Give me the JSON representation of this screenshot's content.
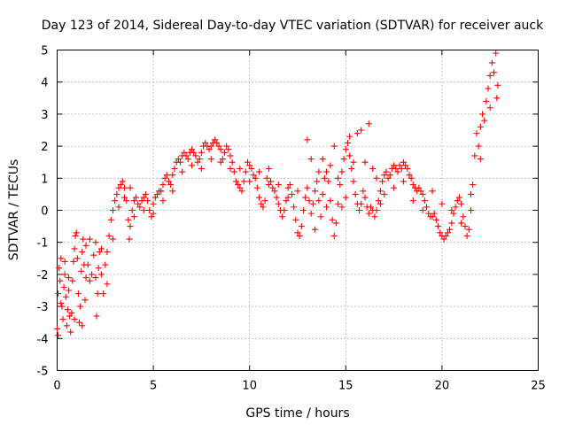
{
  "chart_data": {
    "type": "scatter",
    "title": "Day 123 of 2014, Sidereal Day-to-day VTEC variation (SDTVAR) for receiver auck",
    "xlabel": "GPS time / hours",
    "ylabel": "SDTVAR / TECUs",
    "xlim": [
      0,
      25
    ],
    "ylim": [
      -5,
      5
    ],
    "xticks": [
      0,
      5,
      10,
      15,
      20,
      25
    ],
    "yticks": [
      -5,
      -4,
      -3,
      -2,
      -1,
      0,
      1,
      2,
      3,
      4,
      5
    ],
    "grid": true,
    "legend": "none",
    "series": [
      {
        "name": "SDTVAR",
        "color": "#ff0000",
        "marker": "plus",
        "points": [
          [
            0.0,
            -3.7
          ],
          [
            0.05,
            -2.6
          ],
          [
            0.1,
            -1.8
          ],
          [
            0.15,
            -2.2
          ],
          [
            0.2,
            -1.5
          ],
          [
            0.25,
            -3.0
          ],
          [
            0.3,
            -3.4
          ],
          [
            0.35,
            -2.4
          ],
          [
            0.4,
            -2.0
          ],
          [
            0.45,
            -2.7
          ],
          [
            0.5,
            -3.6
          ],
          [
            0.55,
            -3.1
          ],
          [
            0.6,
            -2.5
          ],
          [
            0.65,
            -3.3
          ],
          [
            0.7,
            -3.8
          ],
          [
            0.75,
            -3.2
          ],
          [
            0.8,
            -2.2
          ],
          [
            0.85,
            -1.6
          ],
          [
            0.9,
            -1.2
          ],
          [
            0.95,
            -0.8
          ],
          [
            1.0,
            -0.7
          ],
          [
            1.05,
            -1.5
          ],
          [
            1.1,
            -2.6
          ],
          [
            1.15,
            -3.5
          ],
          [
            1.2,
            -3.0
          ],
          [
            1.25,
            -1.9
          ],
          [
            1.3,
            -1.3
          ],
          [
            1.35,
            -0.9
          ],
          [
            1.4,
            -1.7
          ],
          [
            1.45,
            -2.8
          ],
          [
            1.5,
            -2.1
          ],
          [
            1.6,
            -1.7
          ],
          [
            1.7,
            -2.2
          ],
          [
            1.8,
            -2.0
          ],
          [
            1.9,
            -1.4
          ],
          [
            2.0,
            -2.1
          ],
          [
            2.05,
            -3.3
          ],
          [
            2.1,
            -2.6
          ],
          [
            2.15,
            -1.8
          ],
          [
            2.2,
            -1.3
          ],
          [
            2.3,
            -2.0
          ],
          [
            2.4,
            -2.6
          ],
          [
            2.5,
            -1.7
          ],
          [
            2.6,
            -1.3
          ],
          [
            2.7,
            -0.8
          ],
          [
            2.8,
            -0.3
          ],
          [
            2.9,
            0.0
          ],
          [
            3.0,
            0.3
          ],
          [
            3.1,
            0.5
          ],
          [
            3.2,
            0.7
          ],
          [
            3.3,
            0.8
          ],
          [
            3.4,
            0.9
          ],
          [
            3.5,
            0.7
          ],
          [
            3.6,
            0.3
          ],
          [
            3.7,
            -0.3
          ],
          [
            3.75,
            -0.9
          ],
          [
            3.8,
            -0.5
          ],
          [
            3.9,
            0.0
          ],
          [
            4.0,
            0.3
          ],
          [
            4.1,
            0.4
          ],
          [
            4.2,
            0.2
          ],
          [
            4.3,
            0.1
          ],
          [
            4.4,
            0.3
          ],
          [
            4.5,
            0.4
          ],
          [
            4.6,
            0.5
          ],
          [
            4.7,
            0.3
          ],
          [
            4.8,
            0.0
          ],
          [
            4.9,
            -0.2
          ],
          [
            5.0,
            0.2
          ],
          [
            5.1,
            0.4
          ],
          [
            5.2,
            0.5
          ],
          [
            5.3,
            0.6
          ],
          [
            5.4,
            0.6
          ],
          [
            5.5,
            0.8
          ],
          [
            5.6,
            1.0
          ],
          [
            5.7,
            1.1
          ],
          [
            5.8,
            0.9
          ],
          [
            5.9,
            0.8
          ],
          [
            6.0,
            1.1
          ],
          [
            6.1,
            1.3
          ],
          [
            6.2,
            1.5
          ],
          [
            6.3,
            1.6
          ],
          [
            6.4,
            1.5
          ],
          [
            6.5,
            1.7
          ],
          [
            6.6,
            1.8
          ],
          [
            6.7,
            1.7
          ],
          [
            6.8,
            1.6
          ],
          [
            6.9,
            1.8
          ],
          [
            7.0,
            1.9
          ],
          [
            7.1,
            1.8
          ],
          [
            7.2,
            1.7
          ],
          [
            7.3,
            1.5
          ],
          [
            7.4,
            1.6
          ],
          [
            7.5,
            1.8
          ],
          [
            7.6,
            2.0
          ],
          [
            7.7,
            2.1
          ],
          [
            7.8,
            2.0
          ],
          [
            7.9,
            1.9
          ],
          [
            8.0,
            2.0
          ],
          [
            8.1,
            2.1
          ],
          [
            8.2,
            2.2
          ],
          [
            8.3,
            2.1
          ],
          [
            8.4,
            2.0
          ],
          [
            8.5,
            1.9
          ],
          [
            8.6,
            1.6
          ],
          [
            8.7,
            1.8
          ],
          [
            8.8,
            2.0
          ],
          [
            8.9,
            1.9
          ],
          [
            9.0,
            1.7
          ],
          [
            9.1,
            1.5
          ],
          [
            9.2,
            1.2
          ],
          [
            9.3,
            0.9
          ],
          [
            9.4,
            0.8
          ],
          [
            9.5,
            0.7
          ],
          [
            9.6,
            0.6
          ],
          [
            9.7,
            0.9
          ],
          [
            9.8,
            1.2
          ],
          [
            9.9,
            1.5
          ],
          [
            10.0,
            1.4
          ],
          [
            10.1,
            1.3
          ],
          [
            10.2,
            1.1
          ],
          [
            10.3,
            1.0
          ],
          [
            10.4,
            0.7
          ],
          [
            10.5,
            0.4
          ],
          [
            10.6,
            0.2
          ],
          [
            10.7,
            0.1
          ],
          [
            10.8,
            0.3
          ],
          [
            10.9,
            1.0
          ],
          [
            11.0,
            1.3
          ],
          [
            11.1,
            0.9
          ],
          [
            11.2,
            0.7
          ],
          [
            11.3,
            0.6
          ],
          [
            11.4,
            0.4
          ],
          [
            11.5,
            0.2
          ],
          [
            11.6,
            0.0
          ],
          [
            11.7,
            -0.2
          ],
          [
            11.8,
            0.0
          ],
          [
            11.9,
            0.3
          ],
          [
            12.0,
            0.7
          ],
          [
            12.1,
            0.8
          ],
          [
            12.2,
            0.5
          ],
          [
            12.3,
            0.1
          ],
          [
            12.4,
            -0.3
          ],
          [
            12.5,
            -0.7
          ],
          [
            12.6,
            -0.8
          ],
          [
            12.7,
            -0.5
          ],
          [
            12.8,
            0.0
          ],
          [
            12.9,
            0.4
          ],
          [
            13.0,
            0.7
          ],
          [
            13.1,
            0.3
          ],
          [
            13.2,
            -0.1
          ],
          [
            13.3,
            0.2
          ],
          [
            13.4,
            0.6
          ],
          [
            13.5,
            0.9
          ],
          [
            13.6,
            0.3
          ],
          [
            13.7,
            -0.2
          ],
          [
            13.8,
            0.5
          ],
          [
            13.9,
            1.0
          ],
          [
            14.0,
            1.2
          ],
          [
            14.1,
            0.9
          ],
          [
            14.2,
            0.3
          ],
          [
            14.3,
            -0.3
          ],
          [
            14.4,
            -0.8
          ],
          [
            14.5,
            -0.4
          ],
          [
            14.6,
            0.2
          ],
          [
            14.7,
            0.8
          ],
          [
            14.8,
            1.2
          ],
          [
            14.9,
            1.6
          ],
          [
            15.0,
            1.9
          ],
          [
            15.1,
            2.1
          ],
          [
            15.2,
            1.7
          ],
          [
            15.3,
            1.3
          ],
          [
            15.4,
            0.9
          ],
          [
            15.5,
            0.5
          ],
          [
            15.6,
            0.2
          ],
          [
            15.7,
            0.0
          ],
          [
            15.8,
            0.2
          ],
          [
            15.9,
            0.6
          ],
          [
            16.0,
            0.4
          ],
          [
            16.1,
            0.1
          ],
          [
            16.2,
            -0.1
          ],
          [
            16.3,
            0.1
          ],
          [
            16.4,
            0.0
          ],
          [
            16.5,
            -0.2
          ],
          [
            16.6,
            0.0
          ],
          [
            16.7,
            0.3
          ],
          [
            16.8,
            0.6
          ],
          [
            16.9,
            0.9
          ],
          [
            17.0,
            1.1
          ],
          [
            17.1,
            1.2
          ],
          [
            17.2,
            1.0
          ],
          [
            17.3,
            1.1
          ],
          [
            17.4,
            1.3
          ],
          [
            17.5,
            1.4
          ],
          [
            17.6,
            1.3
          ],
          [
            17.7,
            1.2
          ],
          [
            17.8,
            1.4
          ],
          [
            17.9,
            1.3
          ],
          [
            18.0,
            1.5
          ],
          [
            18.1,
            1.4
          ],
          [
            18.2,
            1.3
          ],
          [
            18.3,
            1.1
          ],
          [
            18.4,
            1.0
          ],
          [
            18.5,
            0.8
          ],
          [
            18.6,
            0.7
          ],
          [
            18.7,
            0.6
          ],
          [
            18.8,
            0.7
          ],
          [
            18.9,
            0.6
          ],
          [
            19.0,
            0.5
          ],
          [
            19.1,
            0.3
          ],
          [
            19.2,
            0.1
          ],
          [
            19.3,
            -0.1
          ],
          [
            19.4,
            -0.2
          ],
          [
            19.5,
            -0.2
          ],
          [
            19.6,
            -0.1
          ],
          [
            19.7,
            -0.3
          ],
          [
            19.8,
            -0.5
          ],
          [
            19.9,
            -0.7
          ],
          [
            20.0,
            -0.8
          ],
          [
            20.1,
            -0.9
          ],
          [
            20.2,
            -0.8
          ],
          [
            20.3,
            -0.7
          ],
          [
            20.4,
            -0.6
          ],
          [
            20.5,
            -0.4
          ],
          [
            20.6,
            -0.1
          ],
          [
            20.7,
            0.1
          ],
          [
            20.8,
            0.3
          ],
          [
            20.9,
            0.4
          ],
          [
            21.0,
            0.2
          ],
          [
            21.1,
            -0.2
          ],
          [
            21.2,
            -0.5
          ],
          [
            21.3,
            -0.8
          ],
          [
            21.4,
            -0.6
          ],
          [
            21.5,
            0.0
          ],
          [
            21.6,
            0.8
          ],
          [
            21.7,
            1.7
          ],
          [
            21.8,
            2.4
          ],
          [
            21.9,
            2.0
          ],
          [
            22.0,
            2.6
          ],
          [
            22.1,
            3.0
          ],
          [
            22.2,
            2.8
          ],
          [
            22.3,
            3.4
          ],
          [
            22.4,
            3.8
          ],
          [
            22.5,
            4.2
          ],
          [
            22.6,
            4.6
          ],
          [
            22.7,
            4.3
          ],
          [
            22.8,
            4.9
          ],
          [
            22.85,
            3.5
          ],
          [
            0.05,
            -3.9
          ],
          [
            0.2,
            -2.9
          ],
          [
            0.4,
            -1.6
          ],
          [
            0.6,
            -2.1
          ],
          [
            0.9,
            -3.4
          ],
          [
            1.3,
            -3.6
          ],
          [
            1.5,
            -1.1
          ],
          [
            1.7,
            -0.9
          ],
          [
            2.0,
            -1.0
          ],
          [
            2.3,
            -1.2
          ],
          [
            2.6,
            -2.3
          ],
          [
            2.9,
            -0.9
          ],
          [
            3.2,
            0.1
          ],
          [
            3.5,
            0.4
          ],
          [
            3.8,
            0.7
          ],
          [
            4.0,
            -0.2
          ],
          [
            4.5,
            0.0
          ],
          [
            5.0,
            -0.1
          ],
          [
            5.5,
            0.3
          ],
          [
            6.0,
            0.6
          ],
          [
            6.5,
            1.2
          ],
          [
            7.0,
            1.4
          ],
          [
            7.5,
            1.3
          ],
          [
            8.0,
            1.6
          ],
          [
            8.5,
            1.5
          ],
          [
            9.0,
            1.3
          ],
          [
            9.5,
            1.3
          ],
          [
            10.0,
            0.9
          ],
          [
            10.5,
            1.2
          ],
          [
            11.0,
            0.8
          ],
          [
            11.5,
            0.8
          ],
          [
            12.0,
            0.4
          ],
          [
            12.5,
            0.6
          ],
          [
            13.0,
            2.2
          ],
          [
            13.2,
            1.6
          ],
          [
            13.4,
            -0.6
          ],
          [
            13.6,
            1.2
          ],
          [
            13.8,
            1.6
          ],
          [
            14.0,
            0.1
          ],
          [
            14.2,
            1.4
          ],
          [
            14.4,
            2.0
          ],
          [
            14.6,
            1.0
          ],
          [
            14.8,
            0.1
          ],
          [
            15.0,
            0.4
          ],
          [
            15.2,
            2.3
          ],
          [
            15.4,
            1.5
          ],
          [
            15.6,
            2.4
          ],
          [
            15.8,
            2.5
          ],
          [
            16.0,
            1.5
          ],
          [
            16.2,
            2.7
          ],
          [
            16.4,
            1.3
          ],
          [
            16.6,
            1.0
          ],
          [
            16.8,
            0.2
          ],
          [
            17.0,
            0.5
          ],
          [
            17.5,
            0.7
          ],
          [
            18.0,
            0.9
          ],
          [
            18.5,
            0.3
          ],
          [
            19.0,
            0.0
          ],
          [
            19.5,
            0.6
          ],
          [
            20.0,
            0.2
          ],
          [
            20.5,
            0.0
          ],
          [
            21.0,
            -0.4
          ],
          [
            21.5,
            0.5
          ],
          [
            22.0,
            1.6
          ],
          [
            22.5,
            3.2
          ],
          [
            22.9,
            3.9
          ]
        ]
      }
    ]
  }
}
